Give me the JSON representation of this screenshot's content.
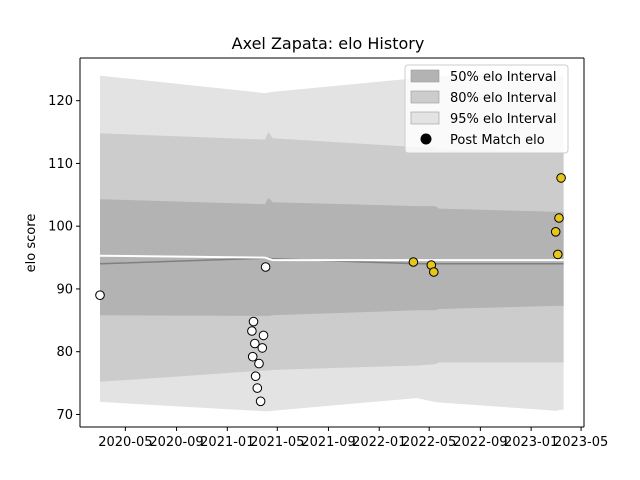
{
  "chart_data": {
    "type": "scatter",
    "title": "Axel Zapata: elo History",
    "xlabel": "",
    "ylabel": "elo score",
    "xlim": [
      "2020-01-13",
      "2023-05-08"
    ],
    "ylim": [
      68,
      126.8
    ],
    "x_ticks": [
      "2020-05",
      "2020-09",
      "2021-01",
      "2021-05",
      "2021-09",
      "2022-01",
      "2022-05",
      "2022-09",
      "2023-01",
      "2023-05"
    ],
    "y_ticks": [
      70,
      80,
      90,
      100,
      110,
      120
    ],
    "grid": false,
    "legend_position": "top-right",
    "colors": {
      "band_50": "#b3b3b3",
      "band_80": "#cccccc",
      "band_95": "#e3e3e3",
      "mean_line": "#7f7f7f",
      "post_match_line": "#ffffff",
      "point_edge": "#000000",
      "point_recent": "#e6c619",
      "point_old": "#ffffff"
    },
    "legend": [
      {
        "label": "50% elo Interval",
        "kind": "band_50"
      },
      {
        "label": "80% elo Interval",
        "kind": "band_80"
      },
      {
        "label": "95% elo Interval",
        "kind": "band_95"
      },
      {
        "label": "Post Match elo",
        "kind": "marker"
      }
    ],
    "bands": {
      "x": [
        "2020-03-01",
        "2021-04-01",
        "2021-04-10",
        "2021-04-20",
        "2022-04-01",
        "2022-05-15",
        "2022-05-25",
        "2023-03-01",
        "2023-03-20"
      ],
      "p2_5": [
        72.0,
        70.5,
        70.5,
        70.6,
        72.6,
        72.0,
        71.9,
        70.6,
        70.8
      ],
      "p10": [
        75.2,
        77.0,
        77.0,
        77.1,
        77.8,
        78.0,
        78.3,
        78.3,
        78.3
      ],
      "p25": [
        85.8,
        85.7,
        85.7,
        85.8,
        86.6,
        86.6,
        86.8,
        87.3,
        87.3
      ],
      "mean": [
        94.0,
        94.9,
        94.9,
        94.8,
        94.0,
        94.0,
        94.0,
        94.0,
        94.0
      ],
      "p75": [
        104.3,
        103.5,
        104.5,
        103.8,
        103.2,
        103.2,
        102.8,
        102.3,
        102.3
      ],
      "p90": [
        114.8,
        113.8,
        115.0,
        114.0,
        112.6,
        112.6,
        112.2,
        111.8,
        111.8
      ],
      "p97_5": [
        124.0,
        121.2,
        121.3,
        121.4,
        123.6,
        123.6,
        124.0,
        124.0,
        124.0
      ]
    },
    "post_match_line": {
      "x": [
        "2020-03-01",
        "2021-04-01",
        "2021-04-20",
        "2022-05-20",
        "2023-03-20"
      ],
      "y": [
        95.3,
        95.0,
        94.6,
        94.6,
        94.6
      ]
    },
    "series": [
      {
        "points": [
          {
            "x": "2020-03-01",
            "y": 89.0,
            "recent": false
          },
          {
            "x": "2021-03-01",
            "y": 83.3,
            "recent": false
          },
          {
            "x": "2021-03-05",
            "y": 84.8,
            "recent": false
          },
          {
            "x": "2021-03-03",
            "y": 79.2,
            "recent": false
          },
          {
            "x": "2021-03-08",
            "y": 81.3,
            "recent": false
          },
          {
            "x": "2021-03-10",
            "y": 76.1,
            "recent": false
          },
          {
            "x": "2021-03-14",
            "y": 74.2,
            "recent": false
          },
          {
            "x": "2021-03-18",
            "y": 78.1,
            "recent": false
          },
          {
            "x": "2021-03-22",
            "y": 72.1,
            "recent": false
          },
          {
            "x": "2021-03-26",
            "y": 80.6,
            "recent": false
          },
          {
            "x": "2021-03-29",
            "y": 82.6,
            "recent": false
          },
          {
            "x": "2021-04-03",
            "y": 93.5,
            "recent": false
          },
          {
            "x": "2022-03-24",
            "y": 94.3,
            "recent": true
          },
          {
            "x": "2022-05-06",
            "y": 93.8,
            "recent": true
          },
          {
            "x": "2022-05-12",
            "y": 92.7,
            "recent": true
          },
          {
            "x": "2023-03-01",
            "y": 99.1,
            "recent": true
          },
          {
            "x": "2023-03-06",
            "y": 95.5,
            "recent": true
          },
          {
            "x": "2023-03-09",
            "y": 101.3,
            "recent": true
          },
          {
            "x": "2023-03-14",
            "y": 107.7,
            "recent": true
          }
        ]
      }
    ]
  }
}
